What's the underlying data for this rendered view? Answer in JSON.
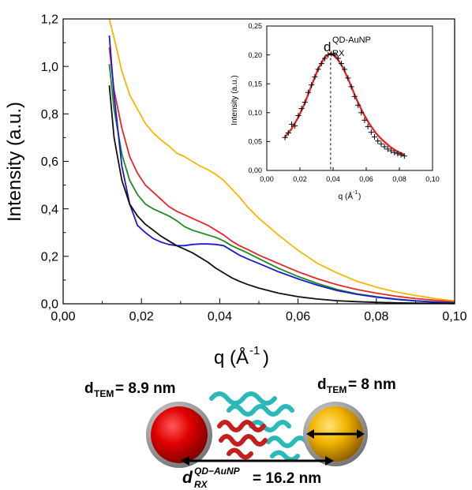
{
  "chart_data": [
    {
      "type": "line",
      "title": "",
      "xlabel": "q (Å",
      "xlabel_sup": "-1",
      "xlabel_close": ")",
      "ylabel": "Intensity (a.u.)",
      "xlim": [
        0,
        0.1
      ],
      "ylim": [
        0,
        1.2
      ],
      "x_ticks": [
        "0,00",
        "0,02",
        "0,04",
        "0,06",
        "0,08",
        "0,10"
      ],
      "y_ticks": [
        "0,0",
        "0,2",
        "0,4",
        "0,6",
        "0,8",
        "1,0",
        "1,2"
      ],
      "grid": false,
      "series": [
        {
          "color": "#f5b800",
          "x": [
            0.0118,
            0.013,
            0.015,
            0.017,
            0.019,
            0.021,
            0.023,
            0.025,
            0.027,
            0.029,
            0.031,
            0.033,
            0.035,
            0.037,
            0.039,
            0.041,
            0.043,
            0.045,
            0.047,
            0.05,
            0.055,
            0.06,
            0.065,
            0.07,
            0.075,
            0.08,
            0.085,
            0.09,
            0.095,
            0.1
          ],
          "y": [
            1.22,
            1.12,
            0.98,
            0.88,
            0.82,
            0.76,
            0.72,
            0.69,
            0.665,
            0.635,
            0.62,
            0.6,
            0.58,
            0.565,
            0.545,
            0.52,
            0.485,
            0.45,
            0.41,
            0.36,
            0.29,
            0.225,
            0.17,
            0.13,
            0.095,
            0.07,
            0.05,
            0.035,
            0.022,
            0.012
          ]
        },
        {
          "color": "#e8262b",
          "x": [
            0.0118,
            0.013,
            0.015,
            0.017,
            0.019,
            0.021,
            0.023,
            0.025,
            0.027,
            0.029,
            0.031,
            0.033,
            0.035,
            0.037,
            0.039,
            0.041,
            0.043,
            0.045,
            0.047,
            0.05,
            0.055,
            0.06,
            0.065,
            0.07,
            0.075,
            0.08,
            0.085,
            0.09,
            0.095,
            0.1
          ],
          "y": [
            1.08,
            0.9,
            0.74,
            0.62,
            0.55,
            0.5,
            0.47,
            0.44,
            0.41,
            0.39,
            0.375,
            0.36,
            0.345,
            0.33,
            0.31,
            0.29,
            0.265,
            0.245,
            0.23,
            0.205,
            0.17,
            0.135,
            0.105,
            0.08,
            0.06,
            0.045,
            0.032,
            0.022,
            0.015,
            0.008
          ]
        },
        {
          "color": "#1f8a1f",
          "x": [
            0.0118,
            0.013,
            0.015,
            0.017,
            0.019,
            0.021,
            0.023,
            0.025,
            0.027,
            0.029,
            0.031,
            0.033,
            0.035,
            0.037,
            0.039,
            0.041,
            0.043,
            0.045,
            0.047,
            0.05,
            0.055,
            0.06,
            0.065,
            0.07,
            0.075,
            0.08,
            0.085,
            0.09,
            0.095,
            0.1
          ],
          "y": [
            1.01,
            0.82,
            0.63,
            0.52,
            0.46,
            0.42,
            0.4,
            0.385,
            0.37,
            0.35,
            0.325,
            0.31,
            0.3,
            0.29,
            0.28,
            0.265,
            0.245,
            0.23,
            0.215,
            0.19,
            0.15,
            0.115,
            0.085,
            0.06,
            0.042,
            0.03,
            0.02,
            0.013,
            0.008,
            0.004
          ]
        },
        {
          "color": "#1a1ad0",
          "x": [
            0.0118,
            0.013,
            0.015,
            0.017,
            0.019,
            0.021,
            0.023,
            0.025,
            0.027,
            0.029,
            0.031,
            0.033,
            0.035,
            0.037,
            0.039,
            0.041,
            0.043,
            0.045,
            0.047,
            0.05,
            0.055,
            0.06,
            0.065,
            0.07,
            0.075,
            0.08,
            0.085,
            0.09,
            0.095,
            0.1
          ],
          "y": [
            1.13,
            0.88,
            0.58,
            0.42,
            0.33,
            0.3,
            0.275,
            0.26,
            0.25,
            0.245,
            0.245,
            0.25,
            0.252,
            0.252,
            0.25,
            0.245,
            0.225,
            0.205,
            0.19,
            0.17,
            0.135,
            0.105,
            0.078,
            0.056,
            0.04,
            0.028,
            0.019,
            0.012,
            0.007,
            0.003
          ]
        },
        {
          "color": "#111111",
          "x": [
            0.0118,
            0.013,
            0.015,
            0.017,
            0.019,
            0.021,
            0.023,
            0.025,
            0.027,
            0.029,
            0.031,
            0.033,
            0.035,
            0.037,
            0.039,
            0.041,
            0.043,
            0.045,
            0.047,
            0.05,
            0.055,
            0.06,
            0.065,
            0.07,
            0.075,
            0.08,
            0.085,
            0.09,
            0.095,
            0.1
          ],
          "y": [
            0.92,
            0.7,
            0.52,
            0.42,
            0.37,
            0.335,
            0.31,
            0.285,
            0.265,
            0.245,
            0.23,
            0.215,
            0.195,
            0.175,
            0.15,
            0.13,
            0.11,
            0.095,
            0.082,
            0.066,
            0.045,
            0.03,
            0.02,
            0.013,
            0.009,
            0.006,
            0.004,
            0.003,
            0.002,
            0.001
          ]
        }
      ]
    },
    {
      "type": "scatter",
      "title": "",
      "xlabel": "q (Å",
      "xlabel_sup": "-1",
      "xlabel_close": ")",
      "ylabel": "Intensity (a.u.)",
      "xlim": [
        0,
        0.1
      ],
      "ylim": [
        0,
        0.25
      ],
      "x_ticks": [
        "0,00",
        "0,02",
        "0,04",
        "0,06",
        "0,08",
        "0,10"
      ],
      "y_ticks": [
        "0,00",
        "0,05",
        "0,10",
        "0,15",
        "0,20",
        "0,25"
      ],
      "annotation_main": "d",
      "annotation_sup": "QD-AuNP",
      "annotation_sub": "RX",
      "peak_x": 0.0385,
      "points": {
        "x": [
          0.011,
          0.013,
          0.015,
          0.017,
          0.019,
          0.021,
          0.023,
          0.025,
          0.027,
          0.029,
          0.031,
          0.033,
          0.035,
          0.037,
          0.039,
          0.041,
          0.043,
          0.045,
          0.047,
          0.049,
          0.051,
          0.053,
          0.055,
          0.057,
          0.059,
          0.061,
          0.063,
          0.065,
          0.067,
          0.069,
          0.071,
          0.073,
          0.075,
          0.077,
          0.079,
          0.081,
          0.083
        ],
        "y": [
          0.057,
          0.065,
          0.08,
          0.077,
          0.095,
          0.107,
          0.118,
          0.135,
          0.148,
          0.162,
          0.175,
          0.185,
          0.194,
          0.2,
          0.202,
          0.2,
          0.194,
          0.185,
          0.175,
          0.16,
          0.145,
          0.128,
          0.113,
          0.1,
          0.087,
          0.076,
          0.066,
          0.058,
          0.051,
          0.046,
          0.041,
          0.037,
          0.034,
          0.031,
          0.029,
          0.027,
          0.025
        ]
      },
      "fit": {
        "color": "#e8262b",
        "x": [
          0.011,
          0.015,
          0.019,
          0.023,
          0.027,
          0.031,
          0.035,
          0.0385,
          0.042,
          0.046,
          0.05,
          0.054,
          0.058,
          0.062,
          0.066,
          0.07,
          0.074,
          0.078,
          0.083
        ],
        "y": [
          0.058,
          0.072,
          0.092,
          0.117,
          0.147,
          0.176,
          0.196,
          0.203,
          0.196,
          0.178,
          0.152,
          0.124,
          0.1,
          0.08,
          0.064,
          0.052,
          0.042,
          0.034,
          0.027
        ]
      }
    }
  ],
  "diagram": {
    "left_label_main": "d",
    "left_label_sub": "TEM",
    "left_label_value": " = 8.9 nm",
    "right_label_main": "d",
    "right_label_sub": "TEM",
    "right_label_value": " = 8 nm",
    "bottom_label_main": "d",
    "bottom_label_sup": "QD−AuNP",
    "bottom_label_sub": "RX",
    "bottom_label_value": "= 16.2 nm",
    "left_sphere_color": "#e00000",
    "right_sphere_color": "#f2b500",
    "protein_colors": [
      "#2ab8b8",
      "#c41f1f"
    ]
  }
}
